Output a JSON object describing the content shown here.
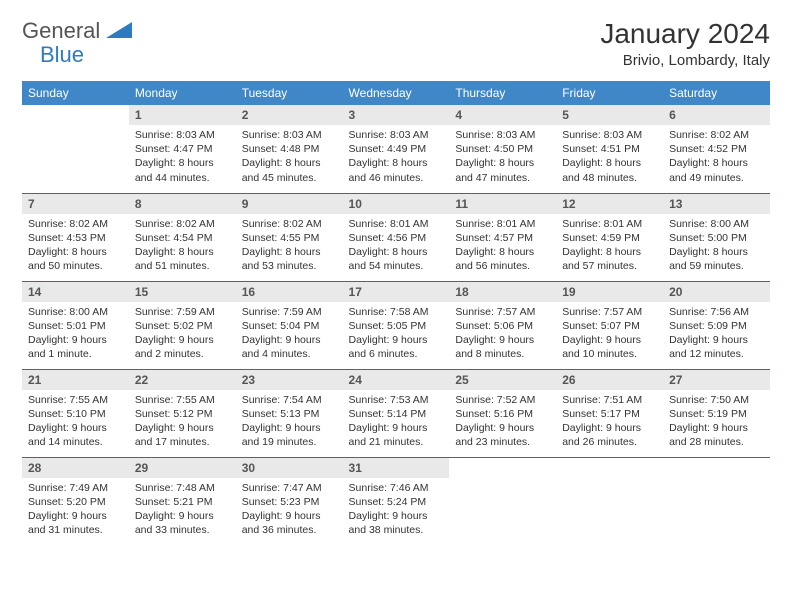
{
  "logo": {
    "general": "General",
    "blue": "Blue"
  },
  "header": {
    "title": "January 2024",
    "location": "Brivio, Lombardy, Italy"
  },
  "colors": {
    "header_bg": "#3f87c7",
    "header_text": "#ffffff",
    "daynum_bg": "#e9e9e9",
    "daynum_text": "#555555",
    "cell_text": "#333333",
    "row_border": "#2f6ca8",
    "logo_accent": "#2f7bbf"
  },
  "weekdays": [
    "Sunday",
    "Monday",
    "Tuesday",
    "Wednesday",
    "Thursday",
    "Friday",
    "Saturday"
  ],
  "weeks": [
    [
      null,
      {
        "n": "1",
        "sr": "8:03 AM",
        "ss": "4:47 PM",
        "dl": "8 hours and 44 minutes."
      },
      {
        "n": "2",
        "sr": "8:03 AM",
        "ss": "4:48 PM",
        "dl": "8 hours and 45 minutes."
      },
      {
        "n": "3",
        "sr": "8:03 AM",
        "ss": "4:49 PM",
        "dl": "8 hours and 46 minutes."
      },
      {
        "n": "4",
        "sr": "8:03 AM",
        "ss": "4:50 PM",
        "dl": "8 hours and 47 minutes."
      },
      {
        "n": "5",
        "sr": "8:03 AM",
        "ss": "4:51 PM",
        "dl": "8 hours and 48 minutes."
      },
      {
        "n": "6",
        "sr": "8:02 AM",
        "ss": "4:52 PM",
        "dl": "8 hours and 49 minutes."
      }
    ],
    [
      {
        "n": "7",
        "sr": "8:02 AM",
        "ss": "4:53 PM",
        "dl": "8 hours and 50 minutes."
      },
      {
        "n": "8",
        "sr": "8:02 AM",
        "ss": "4:54 PM",
        "dl": "8 hours and 51 minutes."
      },
      {
        "n": "9",
        "sr": "8:02 AM",
        "ss": "4:55 PM",
        "dl": "8 hours and 53 minutes."
      },
      {
        "n": "10",
        "sr": "8:01 AM",
        "ss": "4:56 PM",
        "dl": "8 hours and 54 minutes."
      },
      {
        "n": "11",
        "sr": "8:01 AM",
        "ss": "4:57 PM",
        "dl": "8 hours and 56 minutes."
      },
      {
        "n": "12",
        "sr": "8:01 AM",
        "ss": "4:59 PM",
        "dl": "8 hours and 57 minutes."
      },
      {
        "n": "13",
        "sr": "8:00 AM",
        "ss": "5:00 PM",
        "dl": "8 hours and 59 minutes."
      }
    ],
    [
      {
        "n": "14",
        "sr": "8:00 AM",
        "ss": "5:01 PM",
        "dl": "9 hours and 1 minute."
      },
      {
        "n": "15",
        "sr": "7:59 AM",
        "ss": "5:02 PM",
        "dl": "9 hours and 2 minutes."
      },
      {
        "n": "16",
        "sr": "7:59 AM",
        "ss": "5:04 PM",
        "dl": "9 hours and 4 minutes."
      },
      {
        "n": "17",
        "sr": "7:58 AM",
        "ss": "5:05 PM",
        "dl": "9 hours and 6 minutes."
      },
      {
        "n": "18",
        "sr": "7:57 AM",
        "ss": "5:06 PM",
        "dl": "9 hours and 8 minutes."
      },
      {
        "n": "19",
        "sr": "7:57 AM",
        "ss": "5:07 PM",
        "dl": "9 hours and 10 minutes."
      },
      {
        "n": "20",
        "sr": "7:56 AM",
        "ss": "5:09 PM",
        "dl": "9 hours and 12 minutes."
      }
    ],
    [
      {
        "n": "21",
        "sr": "7:55 AM",
        "ss": "5:10 PM",
        "dl": "9 hours and 14 minutes."
      },
      {
        "n": "22",
        "sr": "7:55 AM",
        "ss": "5:12 PM",
        "dl": "9 hours and 17 minutes."
      },
      {
        "n": "23",
        "sr": "7:54 AM",
        "ss": "5:13 PM",
        "dl": "9 hours and 19 minutes."
      },
      {
        "n": "24",
        "sr": "7:53 AM",
        "ss": "5:14 PM",
        "dl": "9 hours and 21 minutes."
      },
      {
        "n": "25",
        "sr": "7:52 AM",
        "ss": "5:16 PM",
        "dl": "9 hours and 23 minutes."
      },
      {
        "n": "26",
        "sr": "7:51 AM",
        "ss": "5:17 PM",
        "dl": "9 hours and 26 minutes."
      },
      {
        "n": "27",
        "sr": "7:50 AM",
        "ss": "5:19 PM",
        "dl": "9 hours and 28 minutes."
      }
    ],
    [
      {
        "n": "28",
        "sr": "7:49 AM",
        "ss": "5:20 PM",
        "dl": "9 hours and 31 minutes."
      },
      {
        "n": "29",
        "sr": "7:48 AM",
        "ss": "5:21 PM",
        "dl": "9 hours and 33 minutes."
      },
      {
        "n": "30",
        "sr": "7:47 AM",
        "ss": "5:23 PM",
        "dl": "9 hours and 36 minutes."
      },
      {
        "n": "31",
        "sr": "7:46 AM",
        "ss": "5:24 PM",
        "dl": "9 hours and 38 minutes."
      },
      null,
      null,
      null
    ]
  ],
  "labels": {
    "sunrise": "Sunrise:",
    "sunset": "Sunset:",
    "daylight": "Daylight:"
  }
}
